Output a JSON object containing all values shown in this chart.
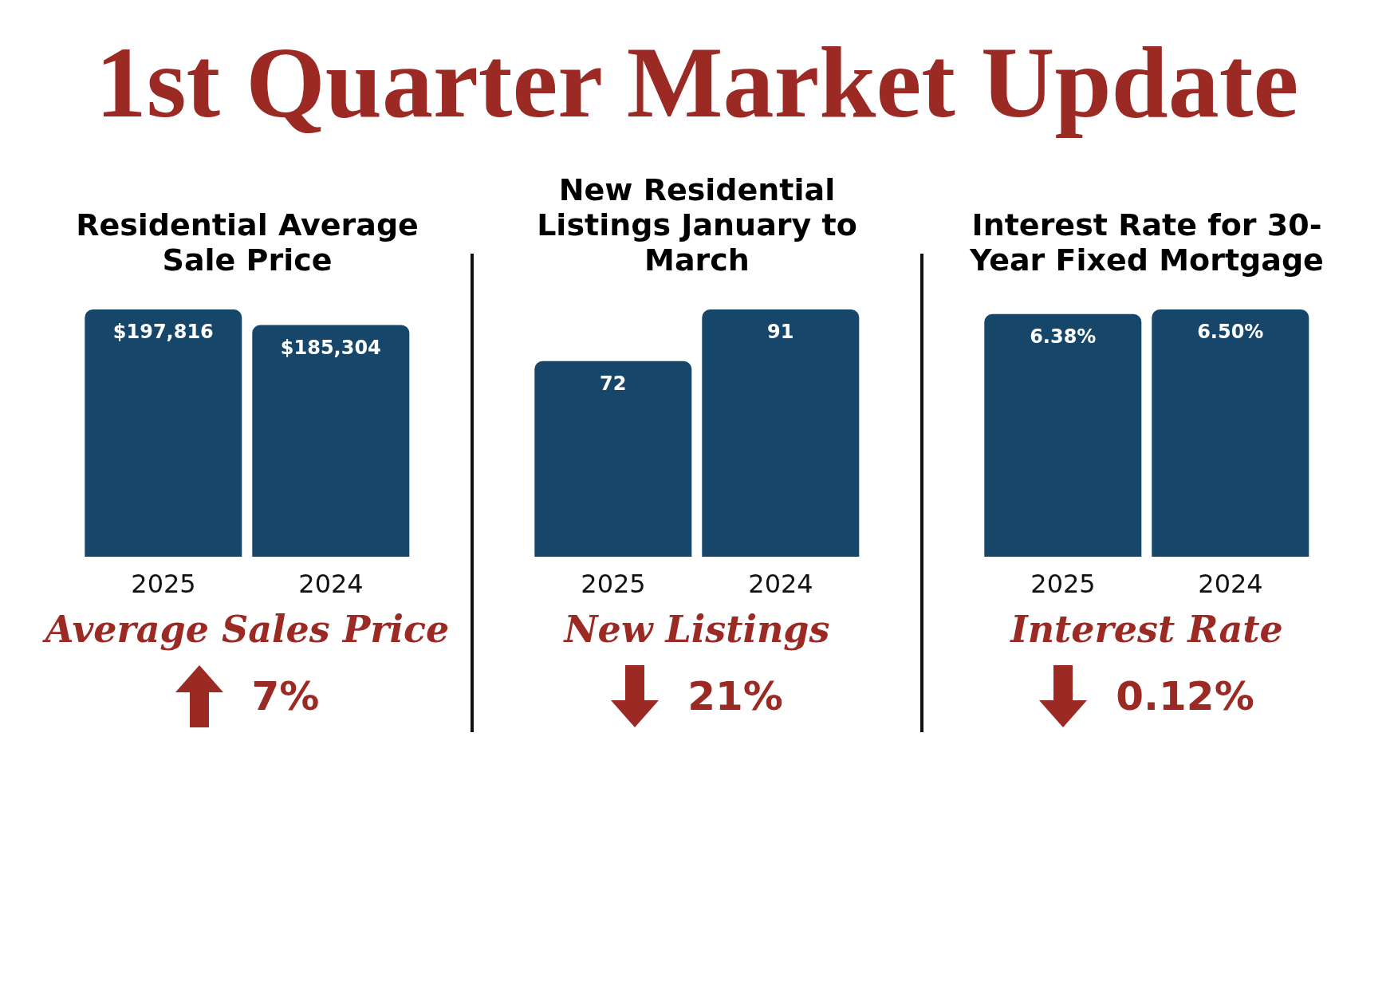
{
  "chart_data": [
    {
      "type": "other",
      "title": "1st Quarter Market Update"
    },
    {
      "type": "bar",
      "title": "Residential Average Sale Price",
      "categories": [
        "2025",
        "2024"
      ],
      "values": [
        197816,
        185304
      ],
      "value_labels": [
        "$197,816",
        "$185,304"
      ],
      "color": "#16476a",
      "annotations": [
        "Average Sales Price",
        "7%"
      ]
    },
    {
      "type": "bar",
      "title": "New Residential Listings January to March",
      "categories": [
        "2025",
        "2024"
      ],
      "values": [
        72,
        91
      ],
      "data_labels": true,
      "color": "#16476a",
      "annotations": [
        "New Listings",
        "21%"
      ]
    },
    {
      "type": "bar",
      "title": "Interest Rate for 30-Year Fixed Mortgage",
      "categories": [
        "2025",
        "2024"
      ],
      "values": [
        6.38,
        6.5
      ],
      "value_labels": [
        "6.38%",
        "6.50%"
      ],
      "color": "#16476a",
      "annotations": [
        "Interest Rate",
        "0.12%"
      ]
    }
  ]
}
